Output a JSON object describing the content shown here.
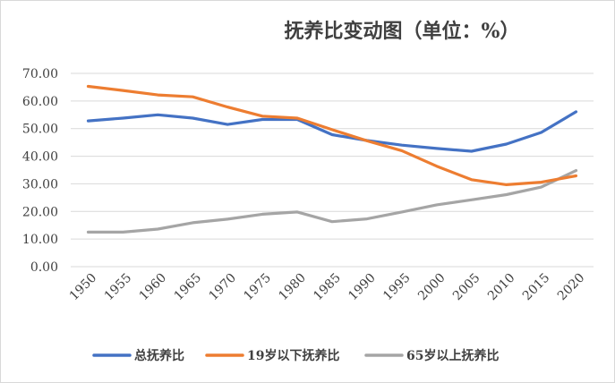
{
  "chart_data": {
    "type": "line",
    "title": "抚养比变动图（单位：%）",
    "categories": [
      "1950",
      "1955",
      "1960",
      "1965",
      "1970",
      "1975",
      "1980",
      "1985",
      "1990",
      "1995",
      "2000",
      "2005",
      "2010",
      "2015",
      "2020"
    ],
    "ytick_labels": [
      "0.00",
      "10.00",
      "20.00",
      "30.00",
      "40.00",
      "50.00",
      "60.00",
      "70.00"
    ],
    "ylim": [
      0,
      70
    ],
    "grid": true,
    "legend_position": "bottom",
    "series": [
      {
        "name": "总抚养比",
        "color": "#4472c4",
        "values": [
          52.8,
          53.8,
          55.0,
          53.8,
          51.5,
          53.3,
          53.3,
          47.8,
          45.7,
          44.0,
          42.8,
          41.8,
          44.4,
          48.6,
          56.1
        ]
      },
      {
        "name": "19岁以下抚养比",
        "color": "#ed7d31",
        "values": [
          65.3,
          63.8,
          62.2,
          61.5,
          57.8,
          54.5,
          53.8,
          49.6,
          45.6,
          42.0,
          36.4,
          31.5,
          29.7,
          30.6,
          32.9
        ]
      },
      {
        "name": "65岁以上抚养比",
        "color": "#a5a5a5",
        "values": [
          12.5,
          12.5,
          13.6,
          15.9,
          17.2,
          19.0,
          19.8,
          16.3,
          17.3,
          19.8,
          22.4,
          24.2,
          26.1,
          28.8,
          34.8
        ]
      }
    ]
  }
}
